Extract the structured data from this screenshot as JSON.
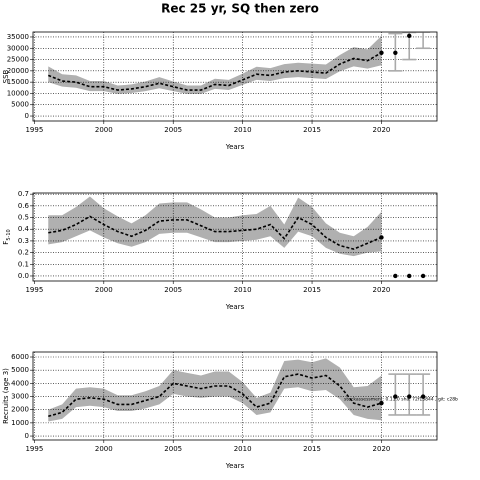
{
  "chart_data": [
    {
      "type": "line",
      "title": "Rec 25 yr, SQ then zero",
      "xlabel": "Years",
      "ylabel": "SSB",
      "x": [
        1996,
        1997,
        1998,
        1999,
        2000,
        2001,
        2002,
        2003,
        2004,
        2005,
        2006,
        2007,
        2008,
        2009,
        2010,
        2011,
        2012,
        2013,
        2014,
        2015,
        2016,
        2017,
        2018,
        2019,
        2020
      ],
      "values": [
        18000,
        15500,
        15000,
        13000,
        13000,
        11500,
        12000,
        13000,
        14500,
        13000,
        11500,
        11500,
        14000,
        13500,
        16000,
        18500,
        18000,
        19500,
        20000,
        19500,
        19000,
        23000,
        25500,
        24500,
        28000
      ],
      "lower": [
        15000,
        13000,
        12500,
        11000,
        11000,
        9800,
        10200,
        11000,
        12300,
        11000,
        9800,
        9800,
        12000,
        11500,
        13800,
        16000,
        15500,
        16800,
        17200,
        16800,
        16400,
        19800,
        22000,
        21000,
        22500
      ],
      "upper": [
        22000,
        18500,
        18000,
        15500,
        15500,
        13500,
        14000,
        15300,
        17200,
        15300,
        13500,
        13500,
        16500,
        16000,
        18800,
        21800,
        21200,
        23000,
        23600,
        23200,
        22800,
        27000,
        30500,
        29500,
        35500
      ],
      "forecast_x": [
        2021,
        2022,
        2023
      ],
      "forecast_values": [
        28000,
        35500,
        null
      ],
      "forecast_lower": [
        20000,
        25000,
        30000
      ],
      "forecast_upper": [
        36500,
        37000,
        37200
      ],
      "color": "#000000",
      "band_color": "#b0b0b0",
      "forecast_color": "#aaaaaa",
      "xlim": [
        1994.9,
        2024
      ],
      "xticks": [
        1995,
        2000,
        2005,
        2010,
        2015,
        2020
      ],
      "ylim": [
        -2200,
        37200
      ],
      "yticks": [
        0,
        5000,
        10000,
        15000,
        20000,
        25000,
        30000,
        35000
      ],
      "grid": true
    },
    {
      "type": "line",
      "xlabel": "Years",
      "ylabel": "F",
      "ylabel_sub": "5-10",
      "x": [
        1996,
        1997,
        1998,
        1999,
        2000,
        2001,
        2002,
        2003,
        2004,
        2005,
        2006,
        2007,
        2008,
        2009,
        2010,
        2011,
        2012,
        2013,
        2014,
        2015,
        2016,
        2017,
        2018,
        2019,
        2020
      ],
      "values": [
        0.37,
        0.39,
        0.44,
        0.51,
        0.44,
        0.38,
        0.34,
        0.39,
        0.47,
        0.48,
        0.48,
        0.43,
        0.38,
        0.38,
        0.39,
        0.4,
        0.44,
        0.32,
        0.5,
        0.44,
        0.33,
        0.26,
        0.23,
        0.28,
        0.33
      ],
      "lower": [
        0.27,
        0.29,
        0.34,
        0.39,
        0.33,
        0.28,
        0.25,
        0.29,
        0.36,
        0.37,
        0.37,
        0.33,
        0.29,
        0.29,
        0.3,
        0.31,
        0.34,
        0.24,
        0.38,
        0.34,
        0.24,
        0.19,
        0.17,
        0.2,
        0.21
      ],
      "upper": [
        0.52,
        0.52,
        0.59,
        0.68,
        0.58,
        0.51,
        0.45,
        0.52,
        0.62,
        0.63,
        0.63,
        0.57,
        0.5,
        0.5,
        0.52,
        0.53,
        0.6,
        0.44,
        0.67,
        0.59,
        0.45,
        0.37,
        0.34,
        0.42,
        0.55
      ],
      "forecast_x": [
        2021,
        2022,
        2023
      ],
      "forecast_values": [
        0,
        0,
        0
      ],
      "forecast_lower": [
        null,
        null,
        null
      ],
      "forecast_upper": [
        null,
        null,
        null
      ],
      "color": "#000000",
      "band_color": "#b0b0b0",
      "forecast_color": "#aaaaaa",
      "xlim": [
        1994.9,
        2024
      ],
      "xticks": [
        1995,
        2000,
        2005,
        2010,
        2015,
        2020
      ],
      "ylim": [
        -0.043,
        0.71
      ],
      "yticks": [
        {
          "value": 0,
          "label": "0.0"
        },
        0.1,
        0.2,
        0.3,
        0.4,
        0.5,
        0.6,
        0.7
      ],
      "grid": true
    },
    {
      "type": "line",
      "xlabel": "Years",
      "ylabel": "Recruits (age 3)",
      "annotation": "stockassessment: 0.11.0 sha: 72f13844 , git: c28b",
      "x": [
        1996,
        1997,
        1998,
        1999,
        2000,
        2001,
        2002,
        2003,
        2004,
        2005,
        2006,
        2007,
        2008,
        2009,
        2010,
        2011,
        2012,
        2013,
        2014,
        2015,
        2016,
        2017,
        2018,
        2019,
        2020
      ],
      "values": [
        1500,
        1800,
        2800,
        2900,
        2800,
        2400,
        2400,
        2700,
        3000,
        4000,
        3800,
        3600,
        3800,
        3800,
        3200,
        2200,
        2500,
        4500,
        4700,
        4400,
        4600,
        3800,
        2500,
        2200,
        2500
      ],
      "lower": [
        1100,
        1300,
        2200,
        2300,
        2200,
        1900,
        1900,
        2100,
        2400,
        3200,
        3000,
        2900,
        3000,
        3000,
        2500,
        1600,
        1800,
        3600,
        3700,
        3400,
        3500,
        2800,
        1600,
        1300,
        1200
      ],
      "upper": [
        2000,
        2400,
        3600,
        3700,
        3600,
        3100,
        3100,
        3400,
        3800,
        5000,
        4800,
        4600,
        4900,
        4900,
        4100,
        2900,
        3300,
        5700,
        5800,
        5600,
        5900,
        5200,
        3700,
        3800,
        4600
      ],
      "forecast_x": [
        2021,
        2022,
        2023
      ],
      "forecast_values": [
        3000,
        3000,
        3000
      ],
      "forecast_lower": [
        1600,
        1600,
        1600
      ],
      "forecast_upper": [
        4700,
        4700,
        4700
      ],
      "color": "#000000",
      "band_color": "#b0b0b0",
      "forecast_color": "#aaaaaa",
      "xlim": [
        1994.9,
        2024
      ],
      "xticks": [
        1995,
        2000,
        2005,
        2010,
        2015,
        2020
      ],
      "ylim": [
        -300,
        6380
      ],
      "yticks": [
        0,
        1000,
        2000,
        3000,
        4000,
        5000,
        6000
      ],
      "grid": true
    }
  ]
}
